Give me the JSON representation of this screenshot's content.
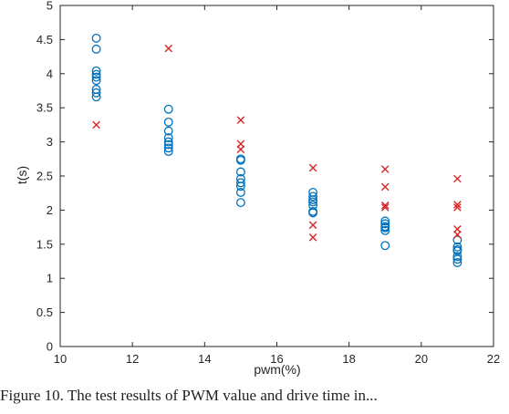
{
  "chart_data": {
    "type": "scatter",
    "xlabel": "pwm(%)",
    "ylabel": "t(s)",
    "xlim": [
      10,
      22
    ],
    "ylim": [
      0,
      5
    ],
    "xticks": [
      "10",
      "12",
      "14",
      "16",
      "18",
      "20",
      "22"
    ],
    "yticks": [
      "0",
      "0.5",
      "1",
      "1.5",
      "2",
      "2.5",
      "3",
      "3.5",
      "4",
      "4.5",
      "5"
    ],
    "grid": false,
    "series": [
      {
        "marker": "circle",
        "color": "#0072BD",
        "points": [
          [
            11,
            4.52
          ],
          [
            11,
            4.36
          ],
          [
            11,
            4.04
          ],
          [
            11,
            3.99
          ],
          [
            11,
            3.95
          ],
          [
            11,
            3.9
          ],
          [
            11,
            3.77
          ],
          [
            11,
            3.72
          ],
          [
            11,
            3.66
          ],
          [
            13,
            3.48
          ],
          [
            13,
            3.29
          ],
          [
            13,
            3.16
          ],
          [
            13,
            3.06
          ],
          [
            13,
            3.0
          ],
          [
            13,
            2.96
          ],
          [
            13,
            2.91
          ],
          [
            13,
            2.86
          ],
          [
            15,
            2.75
          ],
          [
            15,
            2.73
          ],
          [
            15,
            2.56
          ],
          [
            15,
            2.46
          ],
          [
            15,
            2.4
          ],
          [
            15,
            2.35
          ],
          [
            15,
            2.26
          ],
          [
            15,
            2.11
          ],
          [
            17,
            2.26
          ],
          [
            17,
            2.2
          ],
          [
            17,
            2.15
          ],
          [
            17,
            2.12
          ],
          [
            17,
            2.07
          ],
          [
            17,
            1.98
          ],
          [
            17,
            1.96
          ],
          [
            19,
            1.84
          ],
          [
            19,
            1.8
          ],
          [
            19,
            1.76
          ],
          [
            19,
            1.74
          ],
          [
            19,
            1.7
          ],
          [
            19,
            1.48
          ],
          [
            21,
            1.56
          ],
          [
            21,
            1.46
          ],
          [
            21,
            1.42
          ],
          [
            21,
            1.4
          ],
          [
            21,
            1.32
          ],
          [
            21,
            1.28
          ],
          [
            21,
            1.23
          ]
        ]
      },
      {
        "marker": "x",
        "color": "#D62728",
        "points": [
          [
            11,
            3.25
          ],
          [
            13,
            4.37
          ],
          [
            15,
            3.32
          ],
          [
            15,
            2.97
          ],
          [
            15,
            2.89
          ],
          [
            17,
            2.62
          ],
          [
            17,
            1.78
          ],
          [
            17,
            1.6
          ],
          [
            19,
            2.6
          ],
          [
            19,
            2.34
          ],
          [
            19,
            2.07
          ],
          [
            19,
            2.04
          ],
          [
            21,
            2.46
          ],
          [
            21,
            2.08
          ],
          [
            21,
            2.04
          ],
          [
            21,
            1.72
          ],
          [
            21,
            1.64
          ]
        ]
      }
    ]
  },
  "caption": "Figure 10. The test results of PWM value and drive time in..."
}
